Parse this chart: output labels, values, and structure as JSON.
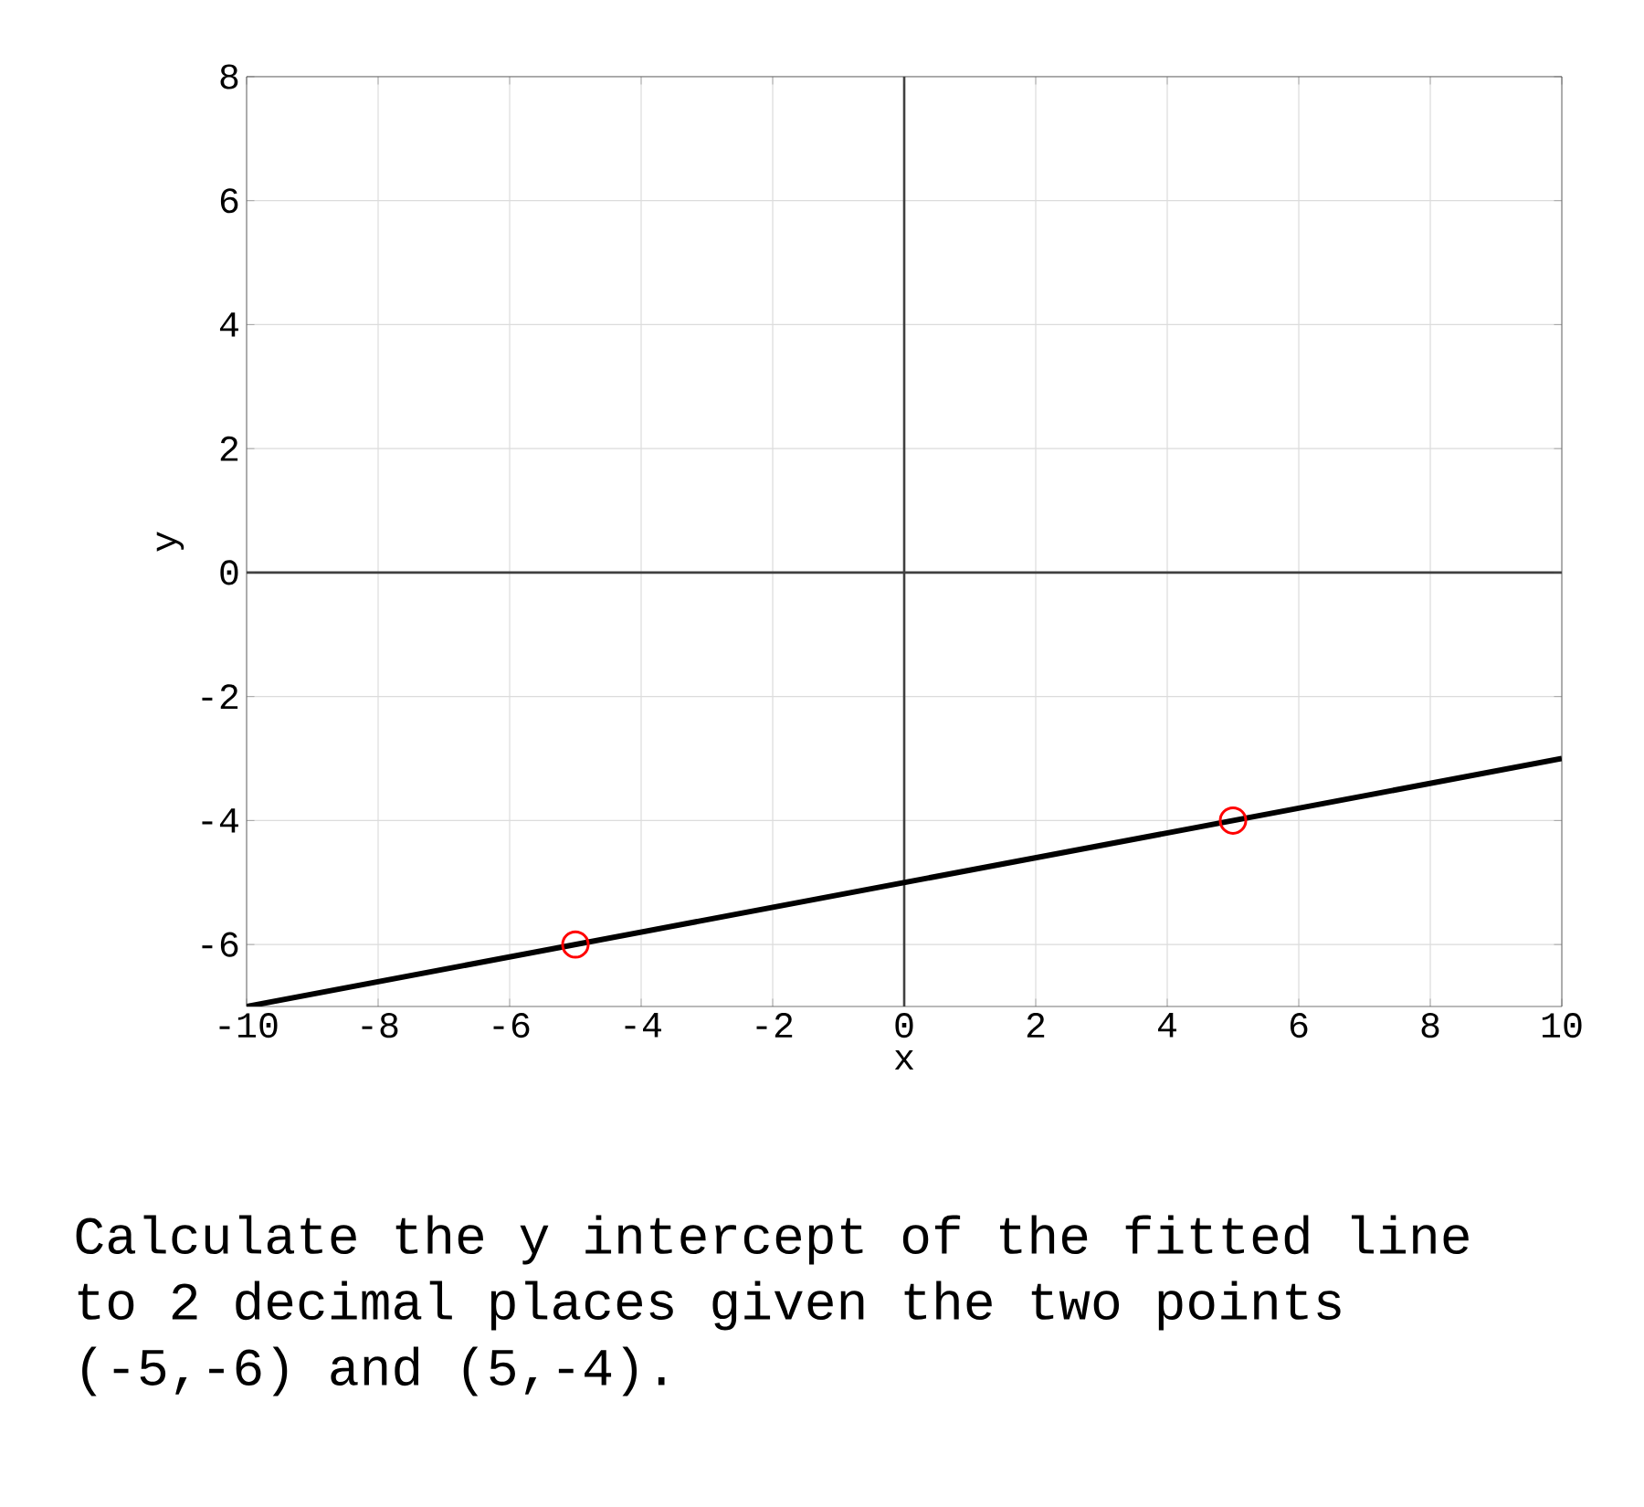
{
  "chart_data": {
    "type": "line",
    "xlabel": "x",
    "ylabel": "y",
    "xlim": [
      -10,
      10
    ],
    "ylim": [
      -7,
      8
    ],
    "xticks": [
      -10,
      -8,
      -6,
      -4,
      -2,
      0,
      2,
      4,
      6,
      8,
      10
    ],
    "yticks": [
      -6,
      -4,
      -2,
      0,
      2,
      4,
      6,
      8
    ],
    "grid": true,
    "series": [
      {
        "color": "#000000",
        "x": [
          -10,
          10
        ],
        "values": [
          -7,
          -3
        ],
        "marker": "none"
      },
      {
        "type": "scatter",
        "color": "#ff0000",
        "x": [
          -5,
          5
        ],
        "values": [
          -6,
          -4
        ],
        "marker": "circle"
      }
    ],
    "annotations": [
      "Calculate the y intercept of the fitted line to 2 decimal places given the two points (-5,-6) and (5,-4)."
    ]
  }
}
